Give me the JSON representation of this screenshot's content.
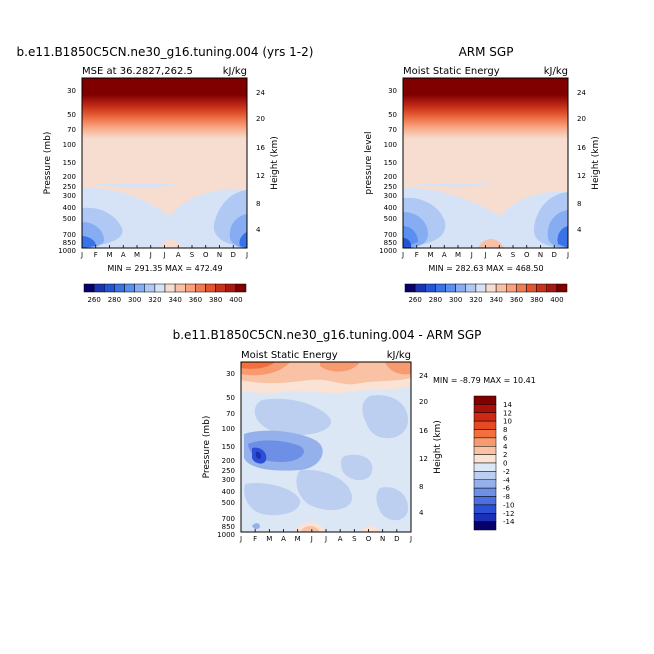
{
  "chart_data": [
    {
      "type": "contour",
      "title": "b.e11.B1850C5CN.ne30_g16.tuning.004 (yrs 1-2)",
      "left_label": "MSE at 36.2827,262.5",
      "right_label": "kJ/kg",
      "ylabel": "Pressure (mb)",
      "y2label": "Height (km)",
      "months": [
        "J",
        "F",
        "M",
        "A",
        "M",
        "J",
        "J",
        "A",
        "S",
        "O",
        "N",
        "D",
        "J"
      ],
      "pressure_ticks": [
        "30",
        "50",
        "70",
        "100",
        "150",
        "200",
        "250",
        "300",
        "400",
        "500",
        "700",
        "850",
        "1000"
      ],
      "height_ticks": [
        "24",
        "20",
        "16",
        "12",
        "8",
        "4"
      ],
      "stats": "MIN = 291.35  MAX = 472.49",
      "min": 291.35,
      "max": 472.49,
      "colorbar_labels": [
        "260",
        "280",
        "300",
        "320",
        "340",
        "360",
        "380",
        "400"
      ]
    },
    {
      "type": "contour",
      "title": "ARM SGP",
      "left_label": "Moist Static Energy",
      "right_label": "kJ/kg",
      "ylabel": "pressure level",
      "y2label": "Height (km)",
      "months": [
        "J",
        "F",
        "M",
        "A",
        "M",
        "J",
        "J",
        "A",
        "S",
        "O",
        "N",
        "D",
        "J"
      ],
      "pressure_ticks": [
        "30",
        "50",
        "70",
        "100",
        "150",
        "200",
        "250",
        "300",
        "400",
        "500",
        "700",
        "850",
        "1000"
      ],
      "height_ticks": [
        "24",
        "20",
        "16",
        "12",
        "8",
        "4"
      ],
      "stats": "MIN = 282.63  MAX = 468.50",
      "min": 282.63,
      "max": 468.5,
      "colorbar_labels": [
        "260",
        "280",
        "300",
        "320",
        "340",
        "360",
        "380",
        "400"
      ]
    },
    {
      "type": "contour",
      "title": "b.e11.B1850C5CN.ne30_g16.tuning.004 - ARM SGP",
      "left_label": "Moist Static Energy",
      "right_label": "kJ/kg",
      "ylabel": "Pressure (mb)",
      "y2label": "Height (km)",
      "months": [
        "J",
        "F",
        "M",
        "A",
        "M",
        "J",
        "J",
        "A",
        "S",
        "O",
        "N",
        "D",
        "J"
      ],
      "pressure_ticks": [
        "30",
        "50",
        "70",
        "100",
        "150",
        "200",
        "250",
        "300",
        "400",
        "500",
        "700",
        "850",
        "1000"
      ],
      "height_ticks": [
        "24",
        "20",
        "16",
        "12",
        "8",
        "4"
      ],
      "stats": "MIN =  -8.79 MAX =  10.41",
      "min": -8.79,
      "max": 10.41,
      "colorbar_labels": [
        "14",
        "12",
        "10",
        "8",
        "6",
        "4",
        "2",
        "0",
        "-2",
        "-4",
        "-6",
        "-8",
        "-10",
        "-12",
        "-14"
      ]
    }
  ],
  "colors": {
    "seq": [
      "#08006a",
      "#1a33b0",
      "#2255d6",
      "#3a72e8",
      "#5b8fef",
      "#86acf2",
      "#b0c8f4",
      "#d6e3f6",
      "#f6ddd0",
      "#f8c0a6",
      "#f89f7c",
      "#f07a52",
      "#e0552f",
      "#c8321b",
      "#a81810",
      "#800000"
    ],
    "div": [
      "#800000",
      "#a8100a",
      "#cc2a14",
      "#e54a22",
      "#f3703e",
      "#f89a70",
      "#f9c2a4",
      "#fae2d4",
      "#dce7f6",
      "#bccff0",
      "#95b1ec",
      "#6d8fe6",
      "#4b6fe0",
      "#2d4fd6",
      "#1a30b6",
      "#08006a"
    ]
  }
}
